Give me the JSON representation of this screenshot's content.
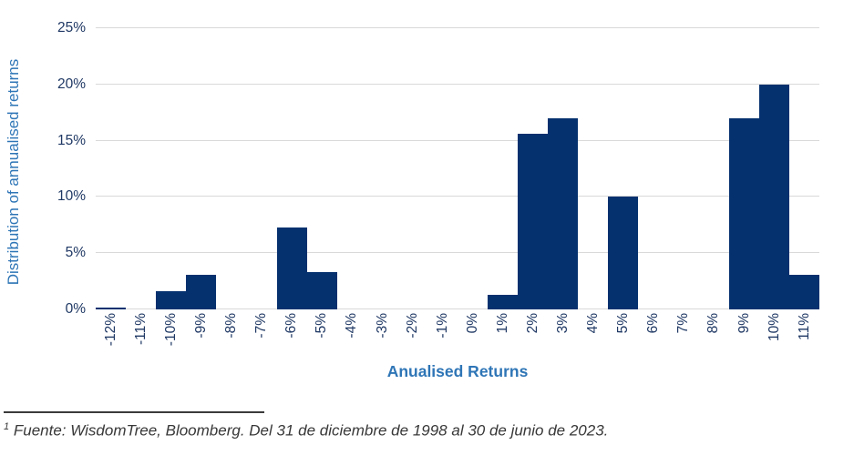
{
  "chart_data": {
    "type": "bar",
    "title": "",
    "xlabel": "Anualised Returns",
    "ylabel": "Distribution of annualised returns",
    "categories": [
      "-12%",
      "-11%",
      "-10%",
      "-9%",
      "-8%",
      "-7%",
      "-6%",
      "-5%",
      "-4%",
      "-3%",
      "-2%",
      "-1%",
      "0%",
      "1%",
      "2%",
      "3%",
      "4%",
      "5%",
      "6%",
      "7%",
      "8%",
      "9%",
      "10%",
      "11%"
    ],
    "values": [
      0.2,
      0,
      1.6,
      3.1,
      0,
      0,
      7.3,
      3.3,
      0,
      0,
      0,
      0,
      0,
      1.3,
      15.6,
      17,
      0,
      10,
      0,
      0,
      0,
      17,
      20,
      3.1
    ],
    "ylim": [
      0,
      25
    ],
    "yticks": [
      0,
      5,
      10,
      15,
      20,
      25
    ],
    "ytick_labels": [
      "0%",
      "5%",
      "10%",
      "15%",
      "20%",
      "25%"
    ],
    "grid": "horizontal",
    "legend": "none",
    "colors": {
      "bar": "#05316f",
      "gridline": "#d9d9d9",
      "tick_label": "#1f3864",
      "axis_title": "#2e75b6"
    }
  },
  "footnote": {
    "sup": "1",
    "text": "Fuente: WisdomTree, Bloomberg. Del 31 de diciembre de 1998 al 30 de junio de 2023."
  }
}
